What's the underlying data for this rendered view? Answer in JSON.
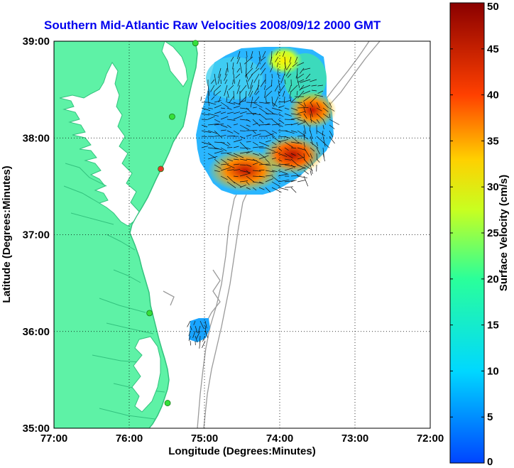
{
  "title": "Southern Mid-Atlantic Raw Velocities 2008/09/12 2000 GMT",
  "map": {
    "xlabel": "Longitude (Degrees:Minutes)",
    "ylabel": "Latitude (Degrees:Minutes)",
    "lon_range": [
      -77,
      -72
    ],
    "lat_range": [
      35,
      39
    ],
    "lon_ticks": [
      {
        "value": -77,
        "label": "77:00"
      },
      {
        "value": -76,
        "label": "76:00"
      },
      {
        "value": -75,
        "label": "75:00"
      },
      {
        "value": -74,
        "label": "74:00"
      },
      {
        "value": -73,
        "label": "73:00"
      },
      {
        "value": -72,
        "label": "72:00"
      }
    ],
    "lat_ticks": [
      {
        "value": 39,
        "label": "39:00"
      },
      {
        "value": 38,
        "label": "38:00"
      },
      {
        "value": 37,
        "label": "37:00"
      },
      {
        "value": 36,
        "label": "36:00"
      },
      {
        "value": 35,
        "label": "35:00"
      }
    ],
    "colors": {
      "land": "#5ef2a6",
      "coast": "#33c27e",
      "bathymetry": "#9a9a9a",
      "grid": "#000000",
      "station": "#35e03a",
      "station_alt": "#e33a2a"
    },
    "stations": [
      {
        "lon": -75.12,
        "lat": 38.98,
        "color": "green"
      },
      {
        "lon": -75.43,
        "lat": 38.22,
        "color": "green"
      },
      {
        "lon": -75.58,
        "lat": 37.68,
        "color": "red"
      },
      {
        "lon": -75.73,
        "lat": 36.19,
        "color": "green"
      },
      {
        "lon": -75.49,
        "lat": 35.26,
        "color": "green"
      }
    ]
  },
  "colorbar": {
    "label": "Surface Velocity (cm/s)",
    "min": 0,
    "max": 50,
    "ticks": [
      "0",
      "5",
      "10",
      "15",
      "20",
      "25",
      "30",
      "35",
      "40",
      "45",
      "50"
    ]
  },
  "velocity_field": {
    "units": "cm/s",
    "northern_area": {
      "lon_range": [
        -75.1,
        -73.2
      ],
      "lat_range": [
        37.4,
        38.9
      ],
      "velocity_range": [
        5,
        50
      ]
    },
    "southern_area": {
      "lon_range": [
        -75.2,
        -74.85
      ],
      "lat_range": [
        35.85,
        36.2
      ],
      "velocity_range": [
        5,
        15
      ]
    }
  }
}
